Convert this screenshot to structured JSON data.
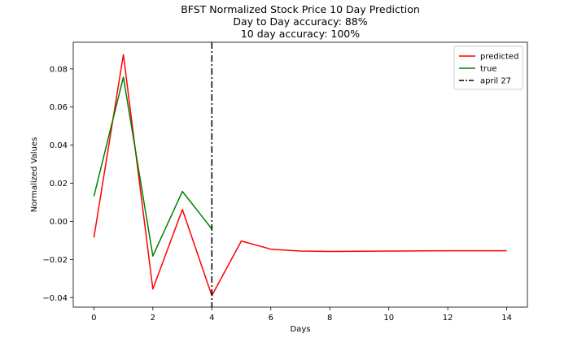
{
  "chart_data": {
    "type": "line",
    "title": [
      "BFST Normalized Stock Price 10 Day Prediction",
      "Day to Day accuracy: 88%",
      "10 day accuracy: 100%"
    ],
    "xlabel": "Days",
    "ylabel": "Normalized Values",
    "xlim": [
      -0.7,
      14.7
    ],
    "ylim": [
      -0.045,
      0.094
    ],
    "xticks": [
      0,
      2,
      4,
      6,
      8,
      10,
      12,
      14
    ],
    "yticks": [
      -0.04,
      -0.02,
      0.0,
      0.02,
      0.04,
      0.06,
      0.08
    ],
    "ytick_labels": [
      "−0.04",
      "−0.02",
      "0.00",
      "0.02",
      "0.04",
      "0.06",
      "0.08"
    ],
    "grid": false,
    "legend_position": "top-right",
    "series": [
      {
        "name": "predicted",
        "color": "#ff0000",
        "x": [
          0,
          1,
          2,
          3,
          4,
          5,
          6,
          7,
          8,
          9,
          10,
          11,
          12,
          13,
          14
        ],
        "y": [
          -0.0085,
          0.0875,
          -0.0355,
          0.0062,
          -0.039,
          -0.0103,
          -0.0146,
          -0.0156,
          -0.0158,
          -0.0157,
          -0.0156,
          -0.0155,
          -0.0154,
          -0.0154,
          -0.0154
        ]
      },
      {
        "name": "true",
        "color": "#008000",
        "x": [
          0,
          1,
          2,
          3,
          4
        ],
        "y": [
          0.0132,
          0.0757,
          -0.0182,
          0.0157,
          -0.004
        ]
      }
    ],
    "vline": {
      "name": "april 27",
      "x": 4,
      "color": "#000000",
      "style": "dashdot"
    }
  }
}
